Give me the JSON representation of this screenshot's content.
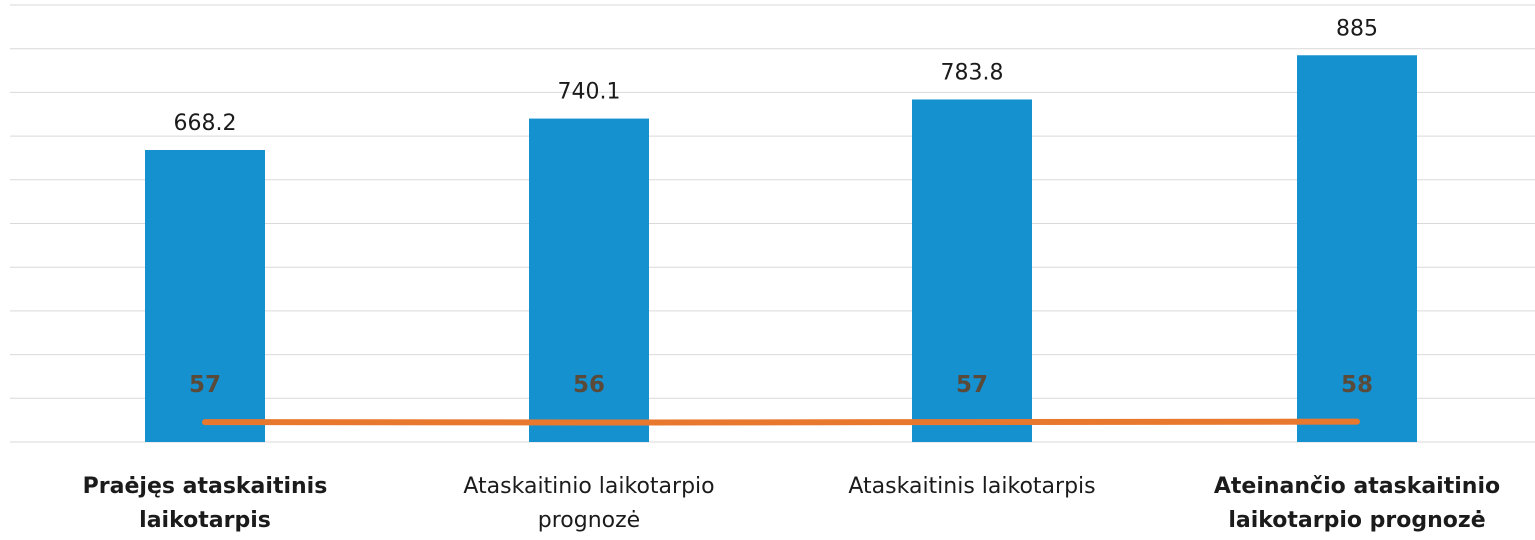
{
  "chart_data": {
    "type": "bar",
    "categories": [
      "Praėjęs ataskaitinis laikotarpis",
      "Ataskaitinio laikotarpio prognozė",
      "Ataskaitinis laikotarpis",
      "Ateinančio ataskaitinio laikotarpio prognozė"
    ],
    "category_lines": [
      [
        "Praėjęs ataskaitinis laikotarpis"
      ],
      [
        "Ataskaitinio laikotarpio",
        "prognozė"
      ],
      [
        "Ataskaitinis laikotarpis"
      ],
      [
        "Ateinančio ataskaitinio",
        "laikotarpio  prognozė"
      ]
    ],
    "series": [
      {
        "type": "bar",
        "values": [
          668.2,
          740.1,
          783.8,
          885
        ],
        "labels": [
          "668.2",
          "740.1",
          "783.8",
          "885"
        ],
        "color": "#1591d0"
      },
      {
        "type": "line",
        "values": [
          57,
          56,
          57,
          58
        ],
        "labels": [
          "57",
          "56",
          "57",
          "58"
        ],
        "color": "#e9782f",
        "label_color": "#5a4a3a"
      }
    ],
    "ylim": [
      0,
      1000
    ],
    "grid": true,
    "legend": "none",
    "title": "",
    "xlabel": "",
    "ylabel": ""
  }
}
